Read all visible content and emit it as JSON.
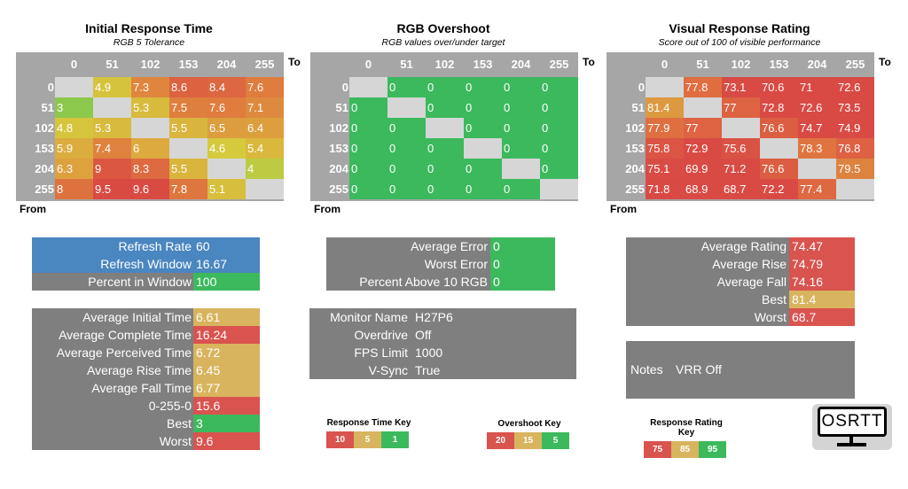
{
  "heatmaps": [
    {
      "title": "Initial Response Time",
      "subtitle": "RGB 5 Tolerance",
      "type": "time",
      "cols": [
        "0",
        "51",
        "102",
        "153",
        "204",
        "255"
      ],
      "rows": [
        "0",
        "51",
        "102",
        "153",
        "204",
        "255"
      ],
      "to_label": "To",
      "from_label": "From",
      "values": [
        [
          null,
          "4.9",
          "7.3",
          "8.6",
          "8.4",
          "7.6"
        ],
        [
          "3",
          null,
          "5.3",
          "7.5",
          "7.6",
          "7.1"
        ],
        [
          "4.8",
          "5.3",
          null,
          "5.5",
          "6.5",
          "6.4"
        ],
        [
          "5.9",
          "7.4",
          "6",
          null,
          "4.6",
          "5.4"
        ],
        [
          "6.3",
          "9",
          "8.3",
          "5.5",
          null,
          "4"
        ],
        [
          "8",
          "9.5",
          "9.6",
          "7.8",
          "5.1",
          null
        ]
      ]
    },
    {
      "title": "RGB Overshoot",
      "subtitle": "RGB values over/under target",
      "type": "overshoot",
      "cols": [
        "0",
        "51",
        "102",
        "153",
        "204",
        "255"
      ],
      "rows": [
        "0",
        "51",
        "102",
        "153",
        "204",
        "255"
      ],
      "to_label": "To",
      "from_label": "From",
      "values": [
        [
          null,
          "0",
          "0",
          "0",
          "0",
          "0"
        ],
        [
          "0",
          null,
          "0",
          "0",
          "0",
          "0"
        ],
        [
          "0",
          "0",
          null,
          "0",
          "0",
          "0"
        ],
        [
          "0",
          "0",
          "0",
          null,
          "0",
          "0"
        ],
        [
          "0",
          "0",
          "0",
          "0",
          null,
          "0"
        ],
        [
          "0",
          "0",
          "0",
          "0",
          "0",
          null
        ]
      ]
    },
    {
      "title": "Visual Response Rating",
      "subtitle": "Score out of 100 of visible performance",
      "type": "rating",
      "cols": [
        "0",
        "51",
        "102",
        "153",
        "204",
        "255"
      ],
      "rows": [
        "0",
        "51",
        "102",
        "153",
        "204",
        "255"
      ],
      "to_label": "To",
      "from_label": "From",
      "values": [
        [
          null,
          "77.8",
          "73.1",
          "70.6",
          "71",
          "72.6"
        ],
        [
          "81.4",
          null,
          "77",
          "72.8",
          "72.6",
          "73.5"
        ],
        [
          "77.9",
          "77",
          null,
          "76.6",
          "74.7",
          "74.9"
        ],
        [
          "75.8",
          "72.9",
          "75.6",
          null,
          "78.3",
          "76.8"
        ],
        [
          "75.1",
          "69.9",
          "71.2",
          "76.6",
          null,
          "79.5"
        ],
        [
          "71.8",
          "68.9",
          "68.7",
          "72.2",
          "77.4",
          null
        ]
      ]
    }
  ],
  "colors": {
    "red": "#d9534f",
    "tan": "#d8b45e",
    "green": "#3cb95d",
    "blue": "#4a86c0",
    "grey": "#7f7f7f",
    "diag": "#d6d6d6"
  },
  "refresh": [
    {
      "label": "Refresh Rate",
      "value": "60",
      "color": "blue"
    },
    {
      "label": "Refresh Window",
      "value": "16.67",
      "color": "blue"
    },
    {
      "label": "Percent in Window",
      "value": "100",
      "color": "green"
    }
  ],
  "times": [
    {
      "label": "Average Initial Time",
      "value": "6.61",
      "color": "tan"
    },
    {
      "label": "Average Complete Time",
      "value": "16.24",
      "color": "red"
    },
    {
      "label": "Average Perceived Time",
      "value": "6.72",
      "color": "tan"
    },
    {
      "label": "Average Rise Time",
      "value": "6.45",
      "color": "tan"
    },
    {
      "label": "Average Fall Time",
      "value": "6.77",
      "color": "tan"
    },
    {
      "label": "0-255-0",
      "value": "15.6",
      "color": "red"
    },
    {
      "label": "Best",
      "value": "3",
      "color": "green"
    },
    {
      "label": "Worst",
      "value": "9.6",
      "color": "red"
    }
  ],
  "overshoot_stats": [
    {
      "label": "Average Error",
      "value": "0",
      "color": "green"
    },
    {
      "label": "Worst Error",
      "value": "0",
      "color": "green"
    },
    {
      "label": "Percent Above 10 RGB",
      "value": "0",
      "color": "green"
    }
  ],
  "monitor": [
    {
      "label": "Monitor Name",
      "value": "H27P6"
    },
    {
      "label": "Overdrive",
      "value": "Off"
    },
    {
      "label": "FPS Limit",
      "value": "1000"
    },
    {
      "label": "V-Sync",
      "value": "True"
    }
  ],
  "rating_stats": [
    {
      "label": "Average Rating",
      "value": "74.47",
      "color": "red"
    },
    {
      "label": "Average Rise",
      "value": "74.79",
      "color": "red"
    },
    {
      "label": "Average Fall",
      "value": "74.16",
      "color": "red"
    },
    {
      "label": "Best",
      "value": "81.4",
      "color": "tan"
    },
    {
      "label": "Worst",
      "value": "68.7",
      "color": "red"
    }
  ],
  "notes": {
    "label": "Notes",
    "value": "VRR Off"
  },
  "keys": [
    {
      "title": "Response Time Key",
      "values": [
        "10",
        "5",
        "1"
      ]
    },
    {
      "title": "Overshoot Key",
      "values": [
        "20",
        "15",
        "5"
      ]
    },
    {
      "title": "Response Rating Key",
      "values": [
        "75",
        "85",
        "95"
      ]
    }
  ],
  "logo": "OSRTT"
}
